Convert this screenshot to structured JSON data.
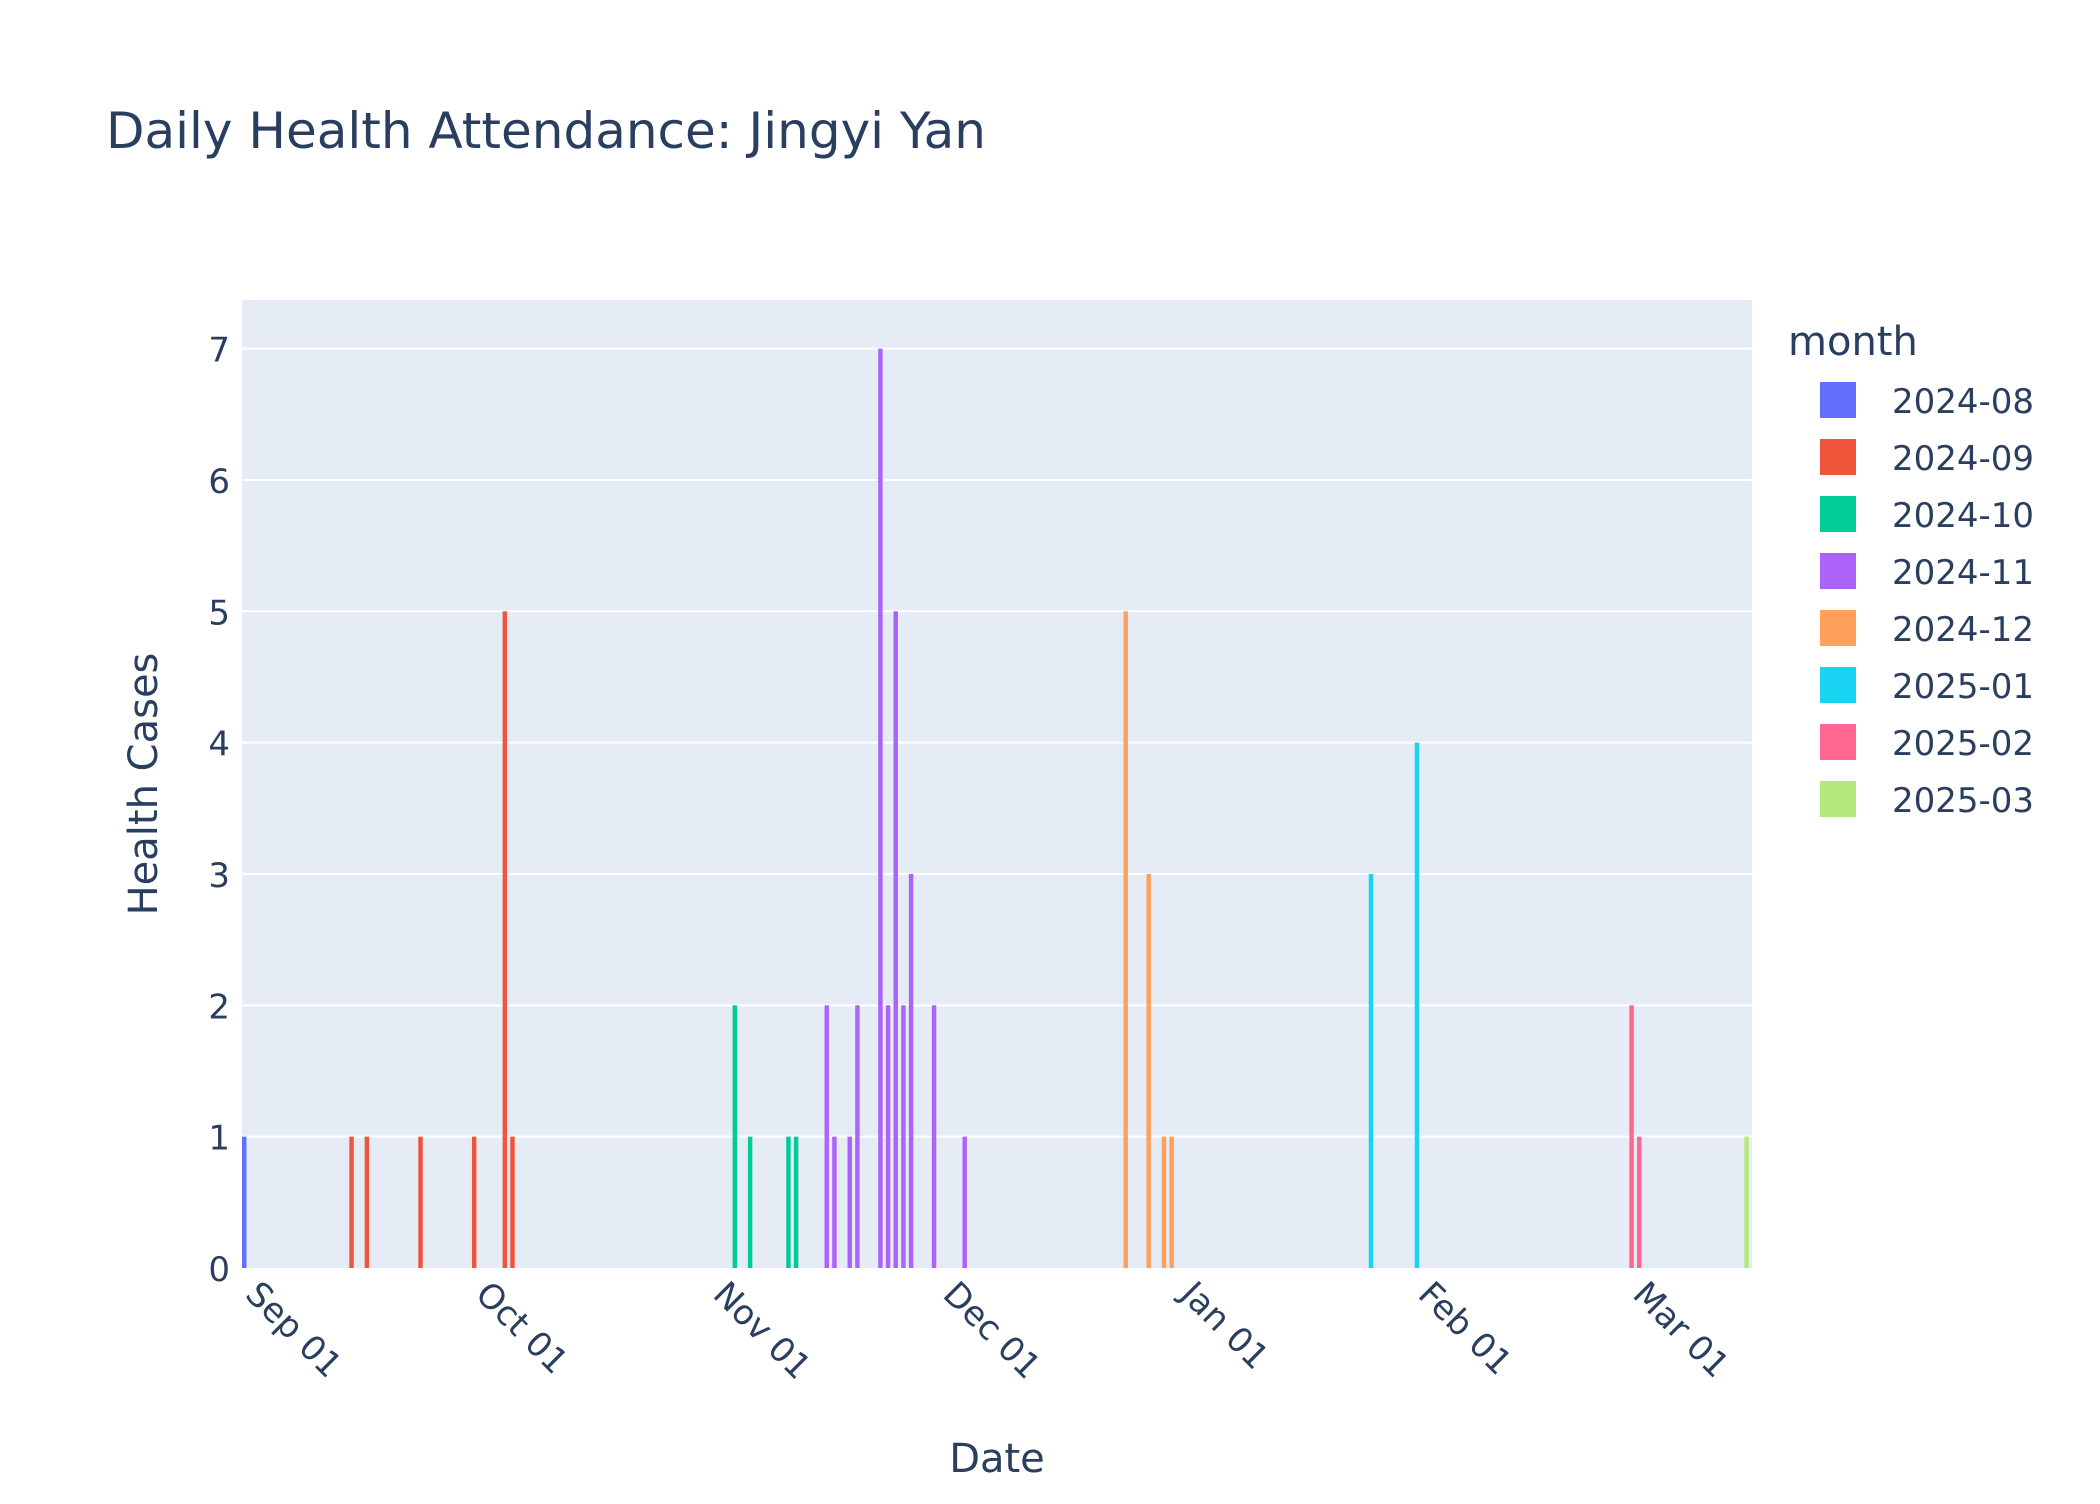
{
  "chart_data": {
    "type": "bar",
    "title": "Daily Health Attendance: Jingyi Yan",
    "xlabel": "Date",
    "ylabel": "Health Cases",
    "legend_title": "month",
    "legend_position": "right",
    "grid": true,
    "plot_background": "#e5ecf6",
    "xlim": [
      "2024-08-31",
      "2025-03-15"
    ],
    "ylim": [
      0,
      7.37
    ],
    "x_ticks": [
      {
        "date": "2024-09-01",
        "label": "Sep 01"
      },
      {
        "date": "2024-10-01",
        "label": "Oct 01"
      },
      {
        "date": "2024-11-01",
        "label": "Nov 01"
      },
      {
        "date": "2024-12-01",
        "label": "Dec 01"
      },
      {
        "date": "2025-01-01",
        "label": "Jan 01"
      },
      {
        "date": "2025-02-01",
        "label": "Feb 01"
      },
      {
        "date": "2025-03-01",
        "label": "Mar 01"
      }
    ],
    "y_ticks": [
      0,
      1,
      2,
      3,
      4,
      5,
      6,
      7
    ],
    "series": [
      {
        "name": "2024-08",
        "color": "#636efa",
        "points": [
          {
            "x": "2024-08-31",
            "y": 1
          }
        ]
      },
      {
        "name": "2024-09",
        "color": "#ef553b",
        "points": [
          {
            "x": "2024-09-14",
            "y": 1
          },
          {
            "x": "2024-09-16",
            "y": 1
          },
          {
            "x": "2024-09-23",
            "y": 1
          },
          {
            "x": "2024-09-30",
            "y": 1
          },
          {
            "x": "2024-10-04",
            "y": 5
          },
          {
            "x": "2024-10-05",
            "y": 1
          }
        ]
      },
      {
        "name": "2024-10",
        "color": "#00cc96",
        "points": [
          {
            "x": "2024-11-03",
            "y": 2
          },
          {
            "x": "2024-11-05",
            "y": 1
          },
          {
            "x": "2024-11-10",
            "y": 1
          },
          {
            "x": "2024-11-11",
            "y": 1
          }
        ]
      },
      {
        "name": "2024-11",
        "color": "#ab63fa",
        "points": [
          {
            "x": "2024-11-15",
            "y": 2
          },
          {
            "x": "2024-11-16",
            "y": 1
          },
          {
            "x": "2024-11-18",
            "y": 1
          },
          {
            "x": "2024-11-19",
            "y": 2
          },
          {
            "x": "2024-11-22",
            "y": 7
          },
          {
            "x": "2024-11-23",
            "y": 2
          },
          {
            "x": "2024-11-24",
            "y": 5
          },
          {
            "x": "2024-11-25",
            "y": 2
          },
          {
            "x": "2024-11-26",
            "y": 3
          },
          {
            "x": "2024-11-29",
            "y": 2
          },
          {
            "x": "2024-12-03",
            "y": 1
          }
        ]
      },
      {
        "name": "2024-12",
        "color": "#ffa15a",
        "points": [
          {
            "x": "2024-12-24",
            "y": 5
          },
          {
            "x": "2024-12-27",
            "y": 3
          },
          {
            "x": "2024-12-29",
            "y": 1
          },
          {
            "x": "2024-12-30",
            "y": 1
          }
        ]
      },
      {
        "name": "2025-01",
        "color": "#19d3f3",
        "points": [
          {
            "x": "2025-01-25",
            "y": 3
          },
          {
            "x": "2025-01-31",
            "y": 4
          }
        ]
      },
      {
        "name": "2025-02",
        "color": "#ff6692",
        "points": [
          {
            "x": "2025-02-28",
            "y": 2
          },
          {
            "x": "2025-03-01",
            "y": 1
          }
        ]
      },
      {
        "name": "2025-03",
        "color": "#b6e880",
        "points": [
          {
            "x": "2025-03-15",
            "y": 1
          }
        ]
      }
    ]
  }
}
